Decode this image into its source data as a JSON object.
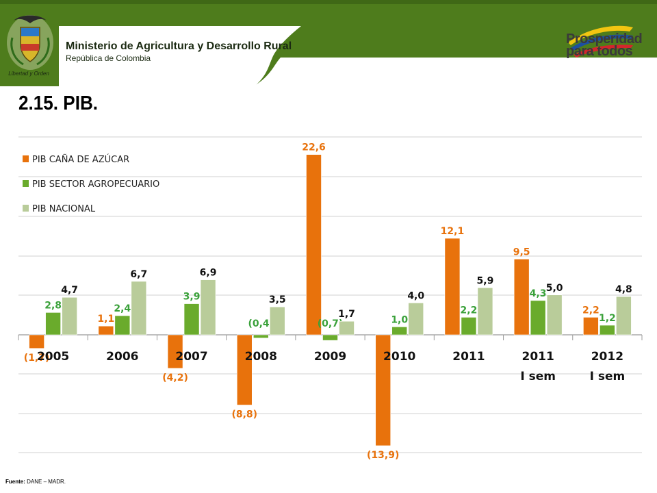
{
  "header": {
    "ministry_name": "Ministerio de Agricultura y Desarrollo Rural",
    "ministry_sub": "República de Colombia",
    "motto": "Libertad y Orden",
    "slogan_line1": "Prosperidad",
    "slogan_line2": "para todos",
    "colors": {
      "band": "#4e7c1c",
      "band_dark": "#3f6816"
    }
  },
  "page": {
    "title": "2.15.    PIB."
  },
  "source": {
    "label": "Fuente:",
    "text": "DANE – MADR."
  },
  "chart_data": {
    "type": "bar",
    "title": "",
    "xlabel": "",
    "ylabel": "",
    "ylim": [
      -16,
      24
    ],
    "grid": true,
    "legend_position": "top-left",
    "categories": [
      {
        "line1": "2005",
        "line2": ""
      },
      {
        "line1": "2006",
        "line2": ""
      },
      {
        "line1": "2007",
        "line2": ""
      },
      {
        "line1": "2008",
        "line2": ""
      },
      {
        "line1": "2009",
        "line2": ""
      },
      {
        "line1": "2010",
        "line2": ""
      },
      {
        "line1": "2011",
        "line2": ""
      },
      {
        "line1": "2011",
        "line2": "I sem"
      },
      {
        "line1": "2012",
        "line2": "I sem"
      }
    ],
    "series": [
      {
        "name": "PIB CAÑA DE AZÚCAR",
        "color": "#e8720c",
        "label_color": "#e8720c",
        "values": [
          -1.7,
          1.1,
          -4.2,
          -8.8,
          22.6,
          -13.9,
          12.1,
          9.5,
          2.2
        ],
        "labels": [
          "(1,7)",
          "1,1",
          "(4,2)",
          "(8,8)",
          "22,6",
          "(13,9)",
          "12,1",
          "9,5",
          "2,2"
        ]
      },
      {
        "name": "PIB SECTOR AGROPECUARIO",
        "color": "#6aab2c",
        "label_color": "#3aa13a",
        "values": [
          2.8,
          2.4,
          3.9,
          -0.4,
          -0.7,
          1.0,
          2.2,
          4.3,
          1.2
        ],
        "labels": [
          "2,8",
          "2,4",
          "3,9",
          "(0,4)",
          "(0,7)",
          "1,0",
          "2,2",
          "4,3",
          "1,2"
        ]
      },
      {
        "name": "PIB NACIONAL",
        "color": "#b9cc9a",
        "label_color": "#111111",
        "values": [
          4.7,
          6.7,
          6.9,
          3.5,
          1.7,
          4.0,
          5.9,
          5.0,
          4.8
        ],
        "labels": [
          "4,7",
          "6,7",
          "6,9",
          "3,5",
          "1,7",
          "4,0",
          "5,9",
          "5,0",
          "4,8"
        ]
      }
    ]
  }
}
